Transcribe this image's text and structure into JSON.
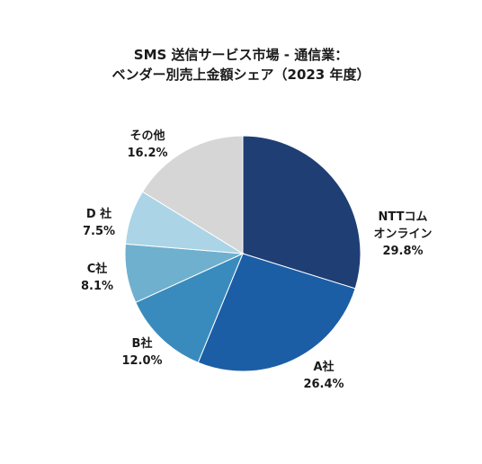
{
  "chart_data": {
    "type": "pie",
    "title_lines": [
      "SMS 送信サービス市場 - 通信業：",
      "ベンダー別売上金額シェア（2023 年度）"
    ],
    "slices": [
      {
        "label_lines": [
          "NTTコム",
          "オンライン"
        ],
        "value": 29.8,
        "value_label": "29.8%",
        "color": "#1f3e74"
      },
      {
        "label_lines": [
          "A社"
        ],
        "value": 26.4,
        "value_label": "26.4%",
        "color": "#1b5ea6"
      },
      {
        "label_lines": [
          "B社"
        ],
        "value": 12.0,
        "value_label": "12.0%",
        "color": "#3a8bbd"
      },
      {
        "label_lines": [
          "C社"
        ],
        "value": 8.1,
        "value_label": "8.1%",
        "color": "#6fb0ce"
      },
      {
        "label_lines": [
          "D 社"
        ],
        "value": 7.5,
        "value_label": "7.5%",
        "color": "#abd4e6"
      },
      {
        "label_lines": [
          "その他"
        ],
        "value": 16.2,
        "value_label": "16.2%",
        "color": "#d6d6d6"
      }
    ],
    "start_angle": "12 o'clock",
    "direction": "clockwise",
    "legend": "none"
  }
}
